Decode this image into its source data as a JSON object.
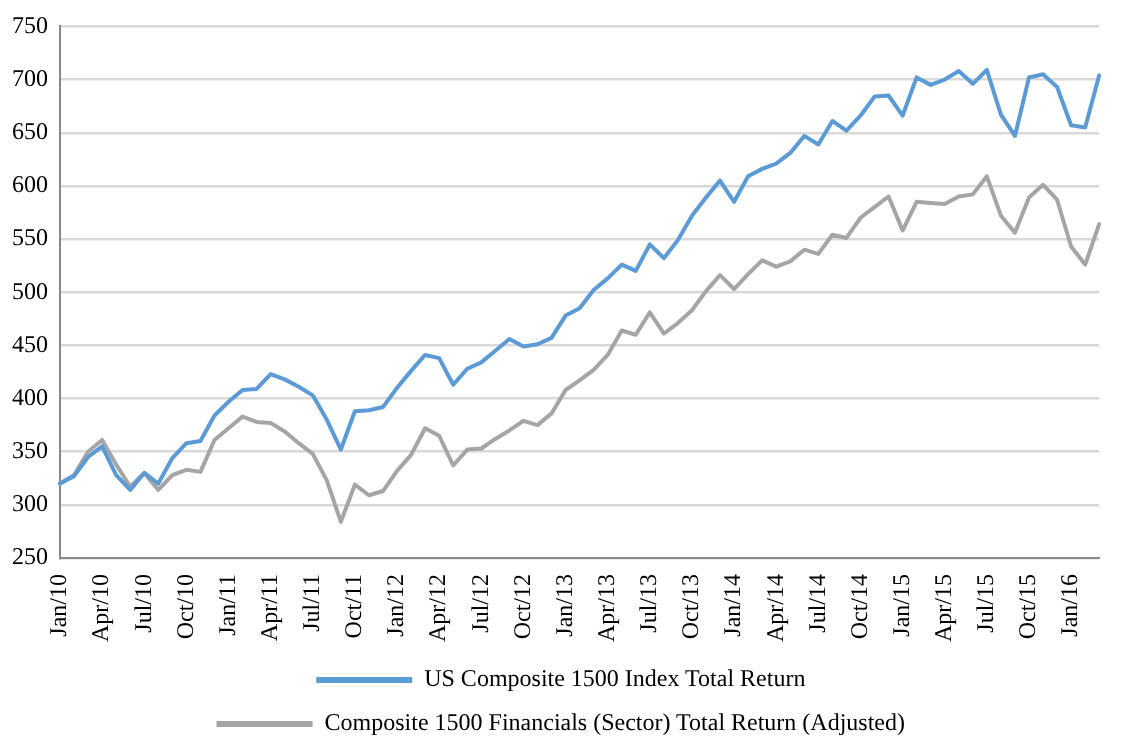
{
  "chart_data": {
    "type": "line",
    "categories": [
      "Jan/10",
      null,
      null,
      "Apr/10",
      null,
      null,
      "Jul/10",
      null,
      null,
      "Oct/10",
      null,
      null,
      "Jan/11",
      null,
      null,
      "Apr/11",
      null,
      null,
      "Jul/11",
      null,
      null,
      "Oct/11",
      null,
      null,
      "Jan/12",
      null,
      null,
      "Apr/12",
      null,
      null,
      "Jul/12",
      null,
      null,
      "Oct/12",
      null,
      null,
      "Jan/13",
      null,
      null,
      "Apr/13",
      null,
      null,
      "Jul/13",
      null,
      null,
      "Oct/13",
      null,
      null,
      "Jan/14",
      null,
      null,
      "Apr/14",
      null,
      null,
      "Jul/14",
      null,
      null,
      "Oct/14",
      null,
      null,
      "Jan/15",
      null,
      null,
      "Apr/15",
      null,
      null,
      "Jul/15",
      null,
      null,
      "Oct/15",
      null,
      null,
      "Jan/16",
      null,
      null
    ],
    "series": [
      {
        "name": "US Composite 1500 Index Total Return",
        "color": "#5b9bd5",
        "values": [
          320,
          327,
          345,
          355,
          328,
          314,
          330,
          320,
          344,
          358,
          360,
          384,
          397,
          408,
          409,
          423,
          418,
          411,
          403,
          380,
          352,
          388,
          389,
          392,
          410,
          426,
          441,
          438,
          413,
          428,
          434,
          445,
          456,
          449,
          451,
          457,
          478,
          485,
          502,
          513,
          526,
          520,
          545,
          532,
          549,
          572,
          589,
          605,
          585,
          609,
          616,
          621,
          631,
          647,
          639,
          661,
          652,
          666,
          684,
          685,
          666,
          702,
          695,
          700,
          708,
          696,
          709,
          667,
          647,
          702,
          705,
          693,
          657,
          655,
          704
        ]
      },
      {
        "name": "Composite 1500 Financials (Sector) Total Return (Adjusted)",
        "color": "#a5a5a5",
        "values": [
          320,
          328,
          350,
          361,
          338,
          317,
          330,
          314,
          328,
          333,
          331,
          361,
          372,
          383,
          378,
          377,
          369,
          358,
          348,
          323,
          284,
          319,
          309,
          313,
          332,
          347,
          372,
          365,
          337,
          352,
          353,
          362,
          370,
          379,
          375,
          386,
          408,
          417,
          427,
          441,
          464,
          460,
          481,
          461,
          471,
          483,
          501,
          516,
          503,
          517,
          530,
          524,
          529,
          540,
          536,
          554,
          551,
          570,
          580,
          590,
          558,
          585,
          584,
          583,
          590,
          592,
          609,
          572,
          556,
          589,
          601,
          587,
          543,
          526,
          564
        ]
      }
    ],
    "ylim": [
      250,
      750
    ],
    "yticks": [
      250,
      300,
      350,
      400,
      450,
      500,
      550,
      600,
      650,
      700,
      750
    ],
    "grid": "y",
    "legend": "bottom",
    "marker": "none",
    "line_style": "solid"
  }
}
